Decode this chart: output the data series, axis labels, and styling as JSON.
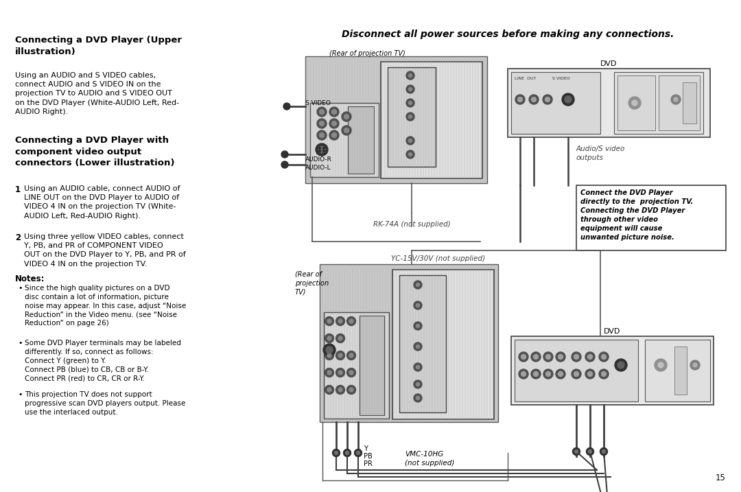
{
  "bg_color": "#ffffff",
  "page_number": "15",
  "title_upper": "Connecting a DVD Player (Upper\nillustration)",
  "text_upper": "Using an AUDIO and S VIDEO cables,\nconnect AUDIO and S VIDEO IN on the\nprojection TV to AUDIO and S VIDEO OUT\non the DVD Player (White-AUDIO Left, Red-\nAUDIO Right).",
  "title_lower": "Connecting a DVD Player with\ncomponent video output\nconnectors (Lower illustration)",
  "text_lower_1": "Using an AUDIO cable, connect AUDIO of\nLINE OUT on the DVD Player to AUDIO of\nVIDEO 4 IN on the projection TV (White-\nAUDIO Left, Red-AUDIO Right).",
  "text_lower_2": "Using three yellow VIDEO cables, connect\nY, PB, and PR of COMPONENT VIDEO\nOUT on the DVD Player to Y, PB, and PR of\nVIDEO 4 IN on the projection TV.",
  "notes_title": "Notes:",
  "note1": "Since the high quality pictures on a DVD\ndisc contain a lot of information, picture\nnoise may appear. In this case, adjust “Noise\nReduction” in the Video menu. (see “Noise\nReduction” on page 26)",
  "note2": "Some DVD Player terminals may be labeled\ndifferently. If so, connect as follows:\nConnect Y (green) to Y.\nConnect PB (blue) to CB, CB or B-Y.\nConnect PR (red) to CR, CR or R-Y.",
  "note3": "This projection TV does not support\nprogressive scan DVD players output. Please\nuse the interlaced output.",
  "warning": "Disconnect all power sources before making any connections.",
  "label_rear_tv_upper": "(Rear of projection TV)",
  "label_rear_tv_lower": "(Rear of\nprojection\nTV)",
  "label_rk74a": "RK-74A (not supplied)",
  "label_yc": "YC-15V/30V (not supplied)",
  "label_dvd_upper": "DVD",
  "label_dvd_lower": "DVD",
  "label_audio_sv": "Audio/S video\noutputs",
  "label_vmc": "VMC-10HG\n(not supplied)",
  "label_y": "Y",
  "label_pb": "PB",
  "label_pr": "PR",
  "warn_box_text": "Connect the DVD Player\ndirectly to the  projection TV.\nConnecting the DVD Player\nthrough other video\nequipment will cause\nunwanted picture noise.",
  "label_svideo": "S VIDEO",
  "label_audio_r": "AUDIO-R",
  "label_audio_l": "AUDIO-L"
}
